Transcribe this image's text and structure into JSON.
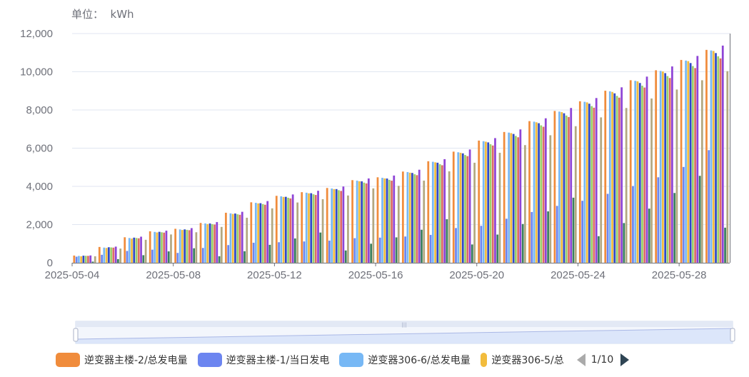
{
  "unit_label": "单位：  kWh",
  "colors": {
    "axis": "#6e7079",
    "grid": "#e0e6f1",
    "bar_outline": "#ffffff",
    "dataZoom_fill": "#d9e4f9",
    "dataZoom_border": "#d2dbee"
  },
  "chart_data": {
    "type": "bar",
    "title": "",
    "ylabel": "单位：  kWh",
    "ylim": [
      0,
      12000
    ],
    "yticks": [
      "0",
      "2,000",
      "4,000",
      "6,000",
      "8,000",
      "10,000",
      "12,000"
    ],
    "x_tick_labels": [
      "2025-05-04",
      "2025-05-08",
      "2025-05-12",
      "2025-05-16",
      "2025-05-20",
      "2025-05-24",
      "2025-05-28"
    ],
    "categories": [
      "2025-05-04",
      "2025-05-05",
      "2025-05-06",
      "2025-05-07",
      "2025-05-08",
      "2025-05-09",
      "2025-05-10",
      "2025-05-11",
      "2025-05-12",
      "2025-05-13",
      "2025-05-14",
      "2025-05-15",
      "2025-05-16",
      "2025-05-17",
      "2025-05-18",
      "2025-05-19",
      "2025-05-20",
      "2025-05-21",
      "2025-05-22",
      "2025-05-23",
      "2025-05-24",
      "2025-05-25",
      "2025-05-26",
      "2025-05-27",
      "2025-05-28",
      "2025-05-29"
    ],
    "grid": true,
    "legend_position": "bottom",
    "legend_page": "1/10",
    "series": [
      {
        "name": "逆变器主楼-2/总发电量",
        "color": "#f08c3c",
        "values": [
          380,
          830,
          1340,
          1650,
          1780,
          2090,
          2620,
          3170,
          3510,
          3700,
          3920,
          4330,
          4480,
          4780,
          5320,
          5820,
          6400,
          6850,
          7420,
          7950,
          8460,
          9010,
          9560,
          10080,
          10620,
          11150
        ]
      },
      {
        "name": "逆变器主楼-1/当日发电",
        "color": "#6c85f0",
        "values": [
          320,
          420,
          620,
          690,
          520,
          780,
          930,
          1050,
          1080,
          1120,
          1160,
          1290,
          1320,
          1380,
          1460,
          1820,
          1940,
          2310,
          2660,
          2980,
          3250,
          3610,
          4020,
          4480,
          5020,
          5900
        ]
      },
      {
        "name": "逆变器306-6/总发电量",
        "color": "#77b8f5",
        "values": [
          360,
          800,
          1300,
          1620,
          1750,
          2060,
          2590,
          3140,
          3480,
          3670,
          3890,
          4300,
          4450,
          4750,
          5290,
          5790,
          6370,
          6820,
          7390,
          7920,
          8430,
          8980,
          9530,
          10050,
          10590,
          11120
        ]
      },
      {
        "name": "逆变器306-5/总",
        "color": "#f2bc3c",
        "values": [
          340,
          780,
          1270,
          1590,
          1720,
          2030,
          2560,
          3110,
          3450,
          3640,
          3860,
          4270,
          4420,
          4720,
          5260,
          5760,
          6340,
          6790,
          7360,
          7890,
          8400,
          8950,
          9500,
          10020,
          10560,
          11090
        ]
      }
    ],
    "other_series_colors": [
      "#2f48c8",
      "#9ad06a",
      "#dd6b66",
      "#8e44d6",
      "#3a7f5e",
      "#b3a880"
    ]
  },
  "dataZoom": {
    "start_percent": 0,
    "end_percent": 100,
    "handle_icon": "grip-icon"
  }
}
